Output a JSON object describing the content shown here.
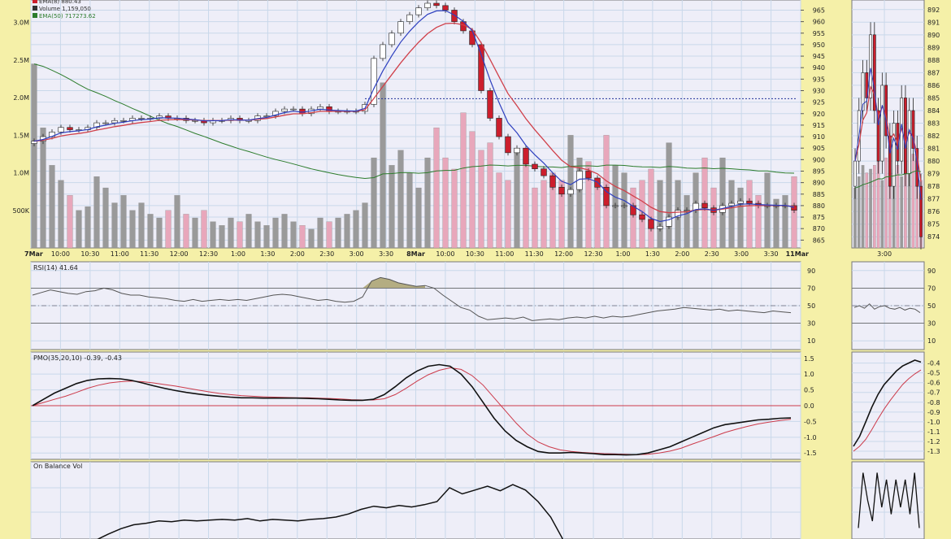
{
  "colors": {
    "page_bg": "#f5f0a8",
    "panel_bg": "#eeeef8",
    "grid": "#c9d8ea",
    "ema_fast": "#2d3fbf",
    "ema_slow": "#d0404a",
    "volume_up": "#9a9a9a",
    "volume_down": "#e8a7bb",
    "ema50": "#2c7c2c",
    "candle_up": "#ffffff",
    "candle_down": "#cc1e2c",
    "rsi_fill": "#b4ad82",
    "pmo_line": "#111111",
    "pmo_signal": "#cc3a4a",
    "zero_line": "#cc3a4a",
    "resistance": "#223399"
  },
  "chart_data": [
    {
      "type": "candlestick",
      "panel": "price",
      "legend": [
        {
          "label": "EMA(8) 880.43",
          "color": "#cc1e2c"
        },
        {
          "label": "Volume 1,159,050",
          "color": "#333333"
        },
        {
          "label": "EMA(50) 717273.62",
          "color": "#2c7c2c"
        }
      ],
      "x_tick_labels": [
        "7Mar",
        "10:00",
        "10:30",
        "11:00",
        "11:30",
        "12:00",
        "12:30",
        "1:00",
        "1:30",
        "2:00",
        "2:30",
        "3:00",
        "3:30",
        "8Mar",
        "10:00",
        "10:30",
        "11:00",
        "11:30",
        "12:00",
        "12:30",
        "1:00",
        "1:30",
        "2:00",
        "2:30",
        "3:00",
        "3:30",
        "11Mar"
      ],
      "price_ticks": [
        965,
        960,
        955,
        950,
        945,
        940,
        935,
        930,
        925,
        920,
        915,
        910,
        905,
        900,
        895,
        890,
        885,
        880,
        875,
        870,
        865
      ],
      "price_range": [
        863,
        968
      ],
      "volume_ticks": [
        "3.0M",
        "2.5M",
        "2.0M",
        "1.5M",
        "1.0M",
        "500K"
      ],
      "volume_range": [
        0,
        3300000
      ],
      "resistance_level": 926.5,
      "close": [
        908,
        910,
        912,
        914,
        913,
        913,
        914,
        916,
        916,
        917,
        917,
        918,
        918,
        918,
        919,
        918,
        918,
        917,
        917,
        916,
        917,
        917,
        918,
        917,
        917,
        919,
        919,
        921,
        922,
        922,
        920,
        922,
        923,
        921,
        921,
        921,
        921,
        924,
        944,
        950,
        955,
        960,
        963,
        966,
        968,
        967,
        965,
        960,
        956,
        950,
        930,
        918,
        910,
        903,
        905,
        898,
        896,
        893,
        888,
        885,
        887,
        895,
        892,
        888,
        880,
        880,
        880,
        876,
        874,
        870,
        871,
        875,
        878,
        878,
        881,
        879,
        877,
        880,
        881,
        882,
        881,
        880,
        880,
        880,
        880,
        878
      ],
      "volume": [
        2450000,
        1600000,
        1100000,
        900000,
        700000,
        500000,
        550000,
        950000,
        800000,
        600000,
        700000,
        500000,
        600000,
        450000,
        400000,
        500000,
        700000,
        450000,
        400000,
        500000,
        350000,
        300000,
        400000,
        350000,
        450000,
        350000,
        300000,
        400000,
        450000,
        350000,
        300000,
        250000,
        400000,
        350000,
        400000,
        450000,
        500000,
        600000,
        1200000,
        2200000,
        1100000,
        1300000,
        1000000,
        800000,
        1200000,
        1600000,
        1200000,
        1050000,
        1800000,
        1550000,
        1300000,
        1400000,
        1000000,
        900000,
        1300000,
        1100000,
        800000,
        900000,
        1000000,
        900000,
        1500000,
        1200000,
        1150000,
        900000,
        1500000,
        1100000,
        1000000,
        800000,
        900000,
        1050000,
        900000,
        1400000,
        900000,
        700000,
        1000000,
        1200000,
        800000,
        1200000,
        900000,
        800000,
        900000,
        700000,
        1000000,
        650000,
        700000,
        950000
      ]
    },
    {
      "type": "line",
      "panel": "rsi",
      "label": "RSI(14) 41.64",
      "ticks": [
        90,
        70,
        50,
        30,
        10
      ],
      "range": [
        0,
        100
      ],
      "values": [
        62,
        65,
        68,
        66,
        64,
        63,
        66,
        67,
        70,
        68,
        64,
        62,
        62,
        60,
        59,
        58,
        56,
        55,
        57,
        55,
        56,
        57,
        56,
        57,
        56,
        58,
        60,
        62,
        63,
        62,
        60,
        58,
        56,
        57,
        55,
        54,
        55,
        60,
        78,
        82,
        80,
        76,
        74,
        72,
        73,
        70,
        62,
        55,
        48,
        45,
        38,
        34,
        35,
        36,
        35,
        37,
        33,
        34,
        35,
        34,
        36,
        37,
        36,
        38,
        36,
        38,
        37,
        38,
        40,
        42,
        44,
        45,
        46,
        48,
        47,
        46,
        45,
        46,
        44,
        45,
        44,
        43,
        42,
        44,
        43,
        42
      ]
    },
    {
      "type": "line",
      "panel": "pmo",
      "label": "PMO(35,20,10) -0.39, -0.43",
      "ticks": [
        1.5,
        1.0,
        0.5,
        0.0,
        -0.5,
        -1.0,
        -1.5
      ],
      "range": [
        -1.7,
        1.7
      ],
      "series": [
        {
          "name": "PMO",
          "values": [
            0.0,
            0.2,
            0.4,
            0.55,
            0.7,
            0.8,
            0.85,
            0.86,
            0.85,
            0.8,
            0.72,
            0.63,
            0.55,
            0.48,
            0.42,
            0.37,
            0.33,
            0.3,
            0.27,
            0.25,
            0.25,
            0.24,
            0.24,
            0.24,
            0.24,
            0.23,
            0.22,
            0.2,
            0.18,
            0.17,
            0.17,
            0.2,
            0.35,
            0.6,
            0.88,
            1.1,
            1.25,
            1.3,
            1.25,
            1.0,
            0.6,
            0.1,
            -0.4,
            -0.8,
            -1.1,
            -1.3,
            -1.45,
            -1.5,
            -1.5,
            -1.48,
            -1.5,
            -1.52,
            -1.55,
            -1.55,
            -1.56,
            -1.55,
            -1.5,
            -1.4,
            -1.3,
            -1.15,
            -1.0,
            -0.85,
            -0.7,
            -0.6,
            -0.55,
            -0.5,
            -0.45,
            -0.43,
            -0.4,
            -0.39
          ]
        },
        {
          "name": "Signal",
          "values": [
            0.0,
            0.1,
            0.2,
            0.3,
            0.42,
            0.55,
            0.65,
            0.72,
            0.76,
            0.78,
            0.76,
            0.72,
            0.67,
            0.62,
            0.56,
            0.5,
            0.44,
            0.39,
            0.35,
            0.32,
            0.3,
            0.28,
            0.27,
            0.26,
            0.25,
            0.25,
            0.24,
            0.23,
            0.21,
            0.19,
            0.18,
            0.18,
            0.22,
            0.35,
            0.55,
            0.78,
            0.98,
            1.12,
            1.2,
            1.15,
            0.95,
            0.65,
            0.25,
            -0.15,
            -0.55,
            -0.9,
            -1.15,
            -1.3,
            -1.4,
            -1.45,
            -1.48,
            -1.5,
            -1.52,
            -1.53,
            -1.54,
            -1.55,
            -1.54,
            -1.5,
            -1.44,
            -1.35,
            -1.22,
            -1.1,
            -0.98,
            -0.85,
            -0.75,
            -0.66,
            -0.58,
            -0.52,
            -0.47,
            -0.43
          ]
        }
      ]
    },
    {
      "type": "line",
      "panel": "obv",
      "label": "On Balance Vol",
      "values": [
        0.12,
        0.13,
        0.15,
        0.12,
        0.2,
        0.3,
        0.38,
        0.45,
        0.5,
        0.52,
        0.55,
        0.54,
        0.56,
        0.55,
        0.56,
        0.57,
        0.56,
        0.58,
        0.55,
        0.57,
        0.56,
        0.55,
        0.57,
        0.58,
        0.6,
        0.64,
        0.7,
        0.74,
        0.72,
        0.75,
        0.73,
        0.76,
        0.8,
        0.98,
        0.9,
        0.95,
        1.0,
        0.94,
        1.02,
        0.95,
        0.8,
        0.6,
        0.3,
        0.12,
        0.1,
        0.11,
        0.1,
        0.1,
        0.1,
        0.1,
        0.1,
        0.1,
        0.12,
        0.1,
        0.1,
        0.11,
        0.12,
        0.1,
        0.12,
        0.1,
        0.11
      ]
    },
    {
      "type": "candlestick",
      "panel": "price-right",
      "x_tick_labels": [
        "3:00"
      ],
      "price_ticks": [
        892,
        891,
        890,
        889,
        888,
        887,
        886,
        885,
        884,
        883,
        882,
        881,
        880,
        879,
        878,
        877,
        876,
        875,
        874
      ],
      "close": [
        880,
        884,
        887,
        885,
        890,
        884,
        880,
        886,
        882,
        878,
        883,
        880,
        885,
        879,
        884,
        881,
        878,
        874
      ],
      "volume": [
        800000,
        950000,
        1100000,
        1000000,
        1050000,
        1100000,
        1150000,
        900000,
        1200000,
        1000000,
        1050000,
        1100000,
        950000,
        1150000,
        1000000,
        1250000,
        1150000,
        900000
      ]
    },
    {
      "type": "line",
      "panel": "rsi-right",
      "ticks": [
        90,
        70,
        50,
        30,
        10
      ],
      "range": [
        0,
        100
      ],
      "values": [
        48,
        50,
        47,
        52,
        46,
        49,
        50,
        47,
        46,
        48,
        45,
        47,
        46,
        42
      ]
    },
    {
      "type": "line",
      "panel": "pmo-right",
      "ticks": [
        -0.4,
        -0.5,
        -0.6,
        -0.7,
        -0.8,
        -0.9,
        -1.0,
        -1.1,
        -1.2,
        -1.3
      ],
      "range": [
        -1.35,
        -0.32
      ],
      "series": [
        {
          "name": "PMO",
          "values": [
            -1.25,
            -1.15,
            -1.0,
            -0.85,
            -0.72,
            -0.62,
            -0.55,
            -0.48,
            -0.43,
            -0.4,
            -0.37,
            -0.39
          ]
        },
        {
          "name": "Signal",
          "values": [
            -1.3,
            -1.25,
            -1.18,
            -1.08,
            -0.97,
            -0.87,
            -0.78,
            -0.7,
            -0.62,
            -0.56,
            -0.51,
            -0.47
          ]
        }
      ]
    },
    {
      "type": "line",
      "panel": "obv-right",
      "values": [
        0.1,
        0.9,
        0.5,
        0.2,
        0.9,
        0.4,
        0.8,
        0.3,
        0.8,
        0.4,
        0.8,
        0.3,
        0.9,
        0.1
      ]
    }
  ]
}
